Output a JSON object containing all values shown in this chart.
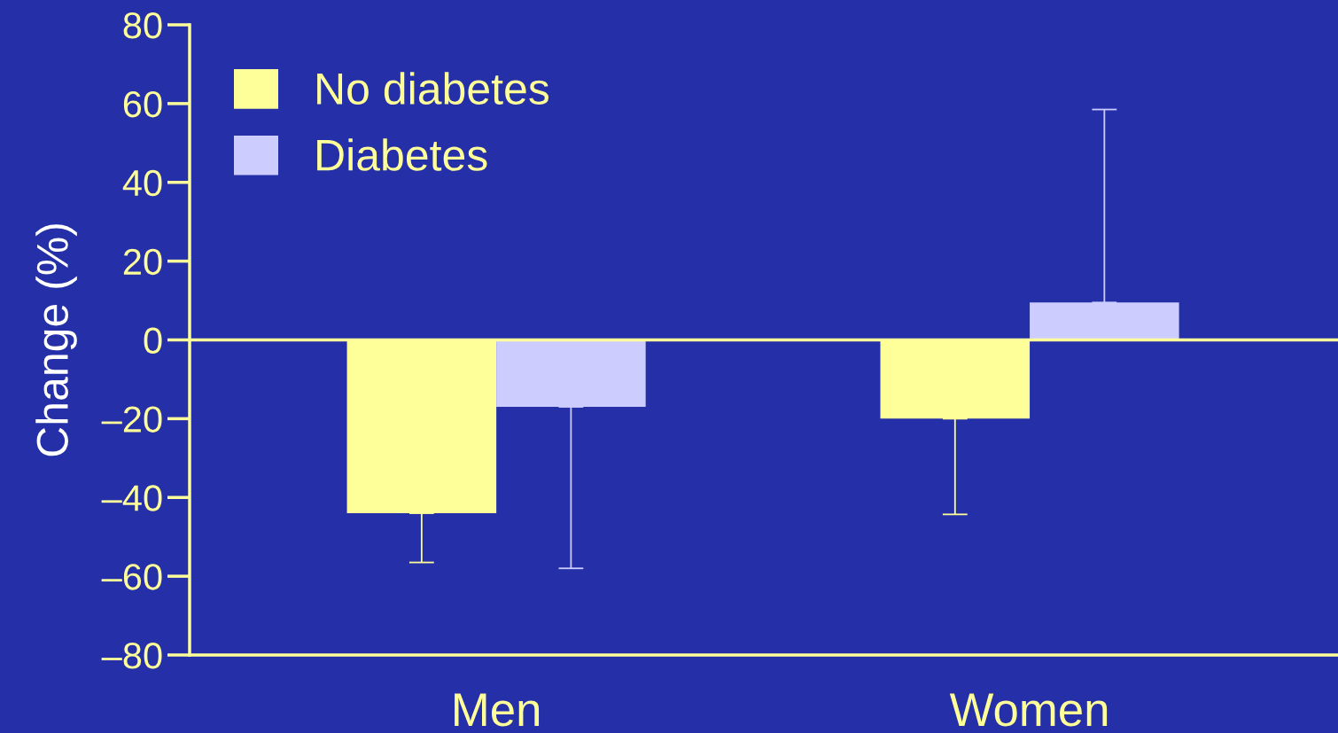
{
  "chart_data": {
    "type": "bar",
    "ylabel": "Change (%)",
    "categories": [
      "Men",
      "Women"
    ],
    "series": [
      {
        "name": "No diabetes",
        "color": "#ffff99",
        "values": [
          -44,
          -20
        ],
        "errors": [
          [
            -56.5,
            -44
          ],
          [
            -44.3,
            -20
          ]
        ]
      },
      {
        "name": "Diabetes",
        "color": "#ccccff",
        "values": [
          -17,
          9.5
        ],
        "errors": [
          [
            -58,
            -17
          ],
          [
            9.5,
            58.5
          ]
        ]
      }
    ],
    "ylim": [
      -80,
      80
    ],
    "yticks": [
      80,
      60,
      40,
      20,
      0,
      {
        "value": -20,
        "label": "–20"
      },
      {
        "value": -40,
        "label": "–40"
      },
      {
        "value": -60,
        "label": "–60"
      },
      {
        "value": -80,
        "label": "–80"
      }
    ],
    "ref_lines": [
      {
        "axis": "y",
        "value": 0,
        "color": "#ffff99"
      }
    ],
    "legend": "top left",
    "grid": false
  }
}
